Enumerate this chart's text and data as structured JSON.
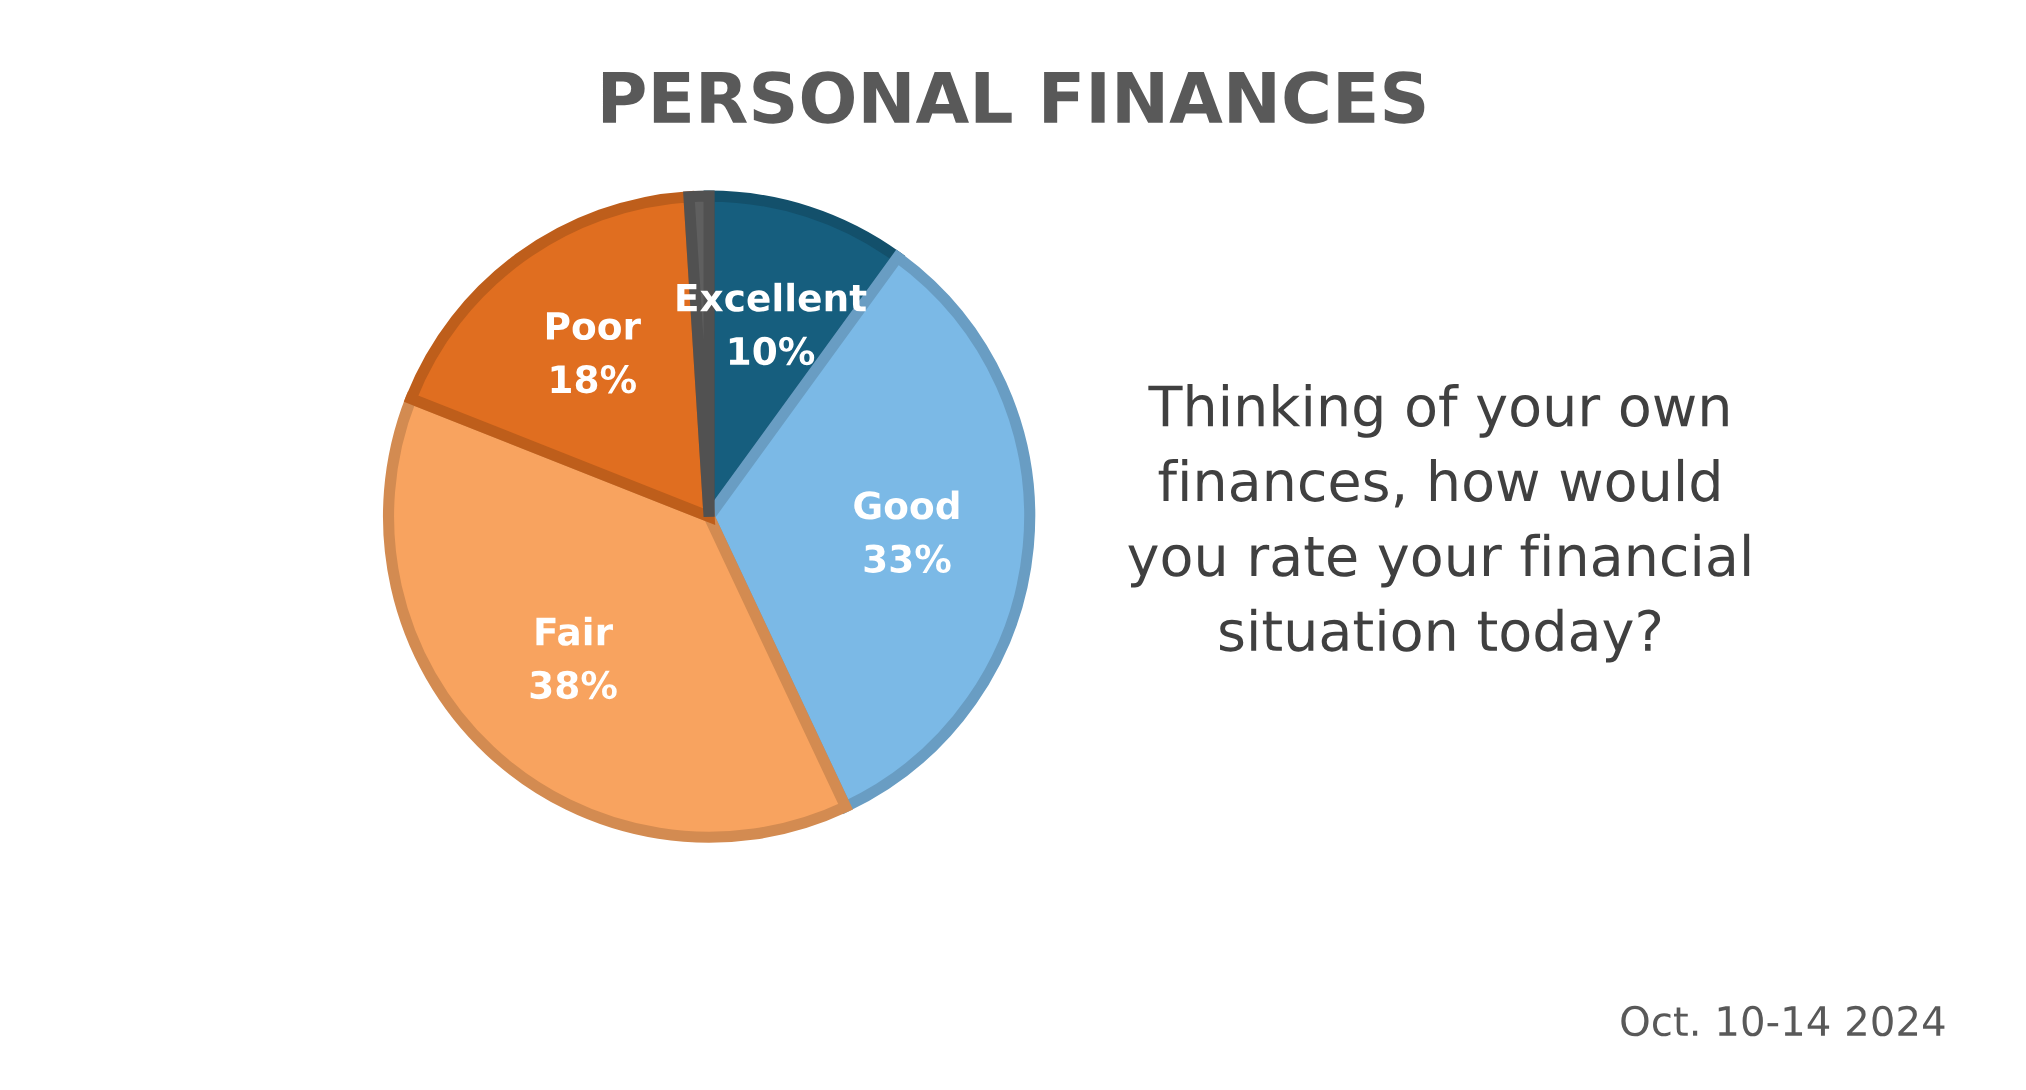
{
  "chart_data": {
    "type": "pie",
    "title": "PERSONAL FINANCES",
    "categories": [
      "Excellent",
      "Good",
      "Fair",
      "Poor",
      null
    ],
    "values": [
      10,
      33,
      38,
      18,
      1
    ],
    "value_labels": [
      "10%",
      "33%",
      "38%",
      "18%",
      null
    ],
    "colors": [
      "#165e7e",
      "#7bb9e6",
      "#f8a35f",
      "#e06e20",
      "#5f5f5f"
    ],
    "legend": false,
    "annotations": [
      "Thinking of your own\nfinances, how would\nyou rate your financial\nsituation today?",
      "Oct. 10-14 2024"
    ]
  }
}
